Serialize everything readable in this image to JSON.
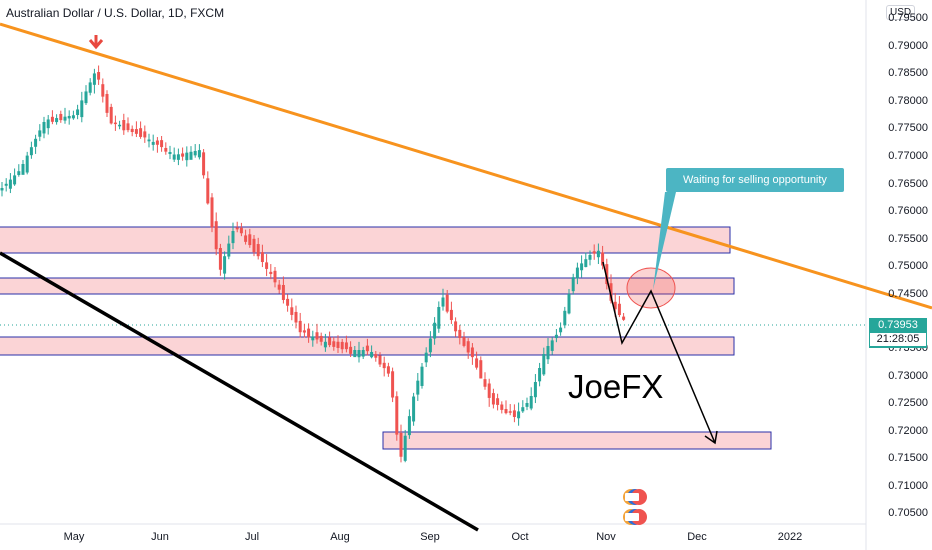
{
  "header": {
    "title": "Australian Dollar / U.S. Dollar, 1D, FXCM"
  },
  "price_axis": {
    "currency": "USD",
    "labels": [
      "0.79500",
      "0.79000",
      "0.78500",
      "0.78000",
      "0.77500",
      "0.77000",
      "0.76500",
      "0.76000",
      "0.75500",
      "0.75000",
      "0.74500",
      "0.73500",
      "0.73000",
      "0.72500",
      "0.72000",
      "0.71500",
      "0.71000",
      "0.70500"
    ],
    "current_price": "0.73953",
    "countdown": "21:28:05"
  },
  "time_axis": {
    "labels": [
      "May",
      "Jun",
      "Jul",
      "Aug",
      "Sep",
      "Oct",
      "Nov",
      "Dec",
      "2022"
    ]
  },
  "annotations": {
    "callout_text": "Waiting for selling opportunity",
    "brand_text": "JoeFX"
  },
  "colors": {
    "up": "#26a69a",
    "down": "#ef5350",
    "trendline": "#f7931e",
    "zone_fill": "#fbd4d6",
    "zone_border": "#2a2fa8",
    "callout_bg": "#4cb5c3"
  },
  "icons": {
    "arrow_marker": "red-down-arrow-icon",
    "logo": "stacked-flags-icon"
  }
}
